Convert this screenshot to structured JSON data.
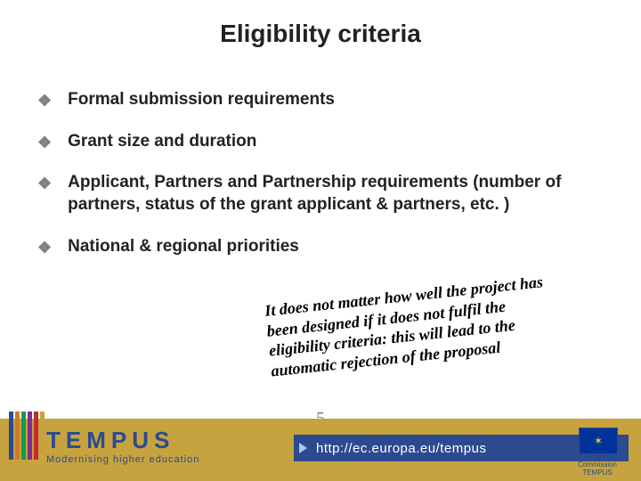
{
  "title": "Eligibility criteria",
  "bullets": [
    "Formal submission requirements",
    "Grant size and duration",
    "Applicant, Partners and Partnership requirements (number of partners, status of the grant applicant & partners, etc. )",
    "National & regional priorities"
  ],
  "bullet_marker": "❖",
  "note_text": "It does not matter how well the project has been designed if it does not fulfil the eligibility criteria: this will lead to the automatic rejection of the proposal",
  "note_color": "#000000",
  "page_number": "5",
  "footer": {
    "band_color": "#c6a33e",
    "url_band_color": "#2b4a90",
    "url": "http://ec.europa.eu/tempus",
    "logo_text": "TEMPUS",
    "tagline": "Modernising higher education",
    "eu_caption": "European Commission\nTEMPUS",
    "flag_bg": "#003399",
    "flag_stars": "✶"
  },
  "side_bar_colors": [
    "#2b4a90",
    "#d17a2a",
    "#159a4a",
    "#7c2f8e",
    "#c42c2c",
    "#c6a33e"
  ],
  "colors": {
    "title": "#222222",
    "body": "#222222",
    "marker": "#7f7f7f",
    "page_num": "#7a7a7a",
    "logo": "#2b4a90"
  },
  "fontsizes": {
    "title": 28,
    "bullet": 19,
    "note": 18,
    "url": 15,
    "logo": 26,
    "tagline": 11
  }
}
